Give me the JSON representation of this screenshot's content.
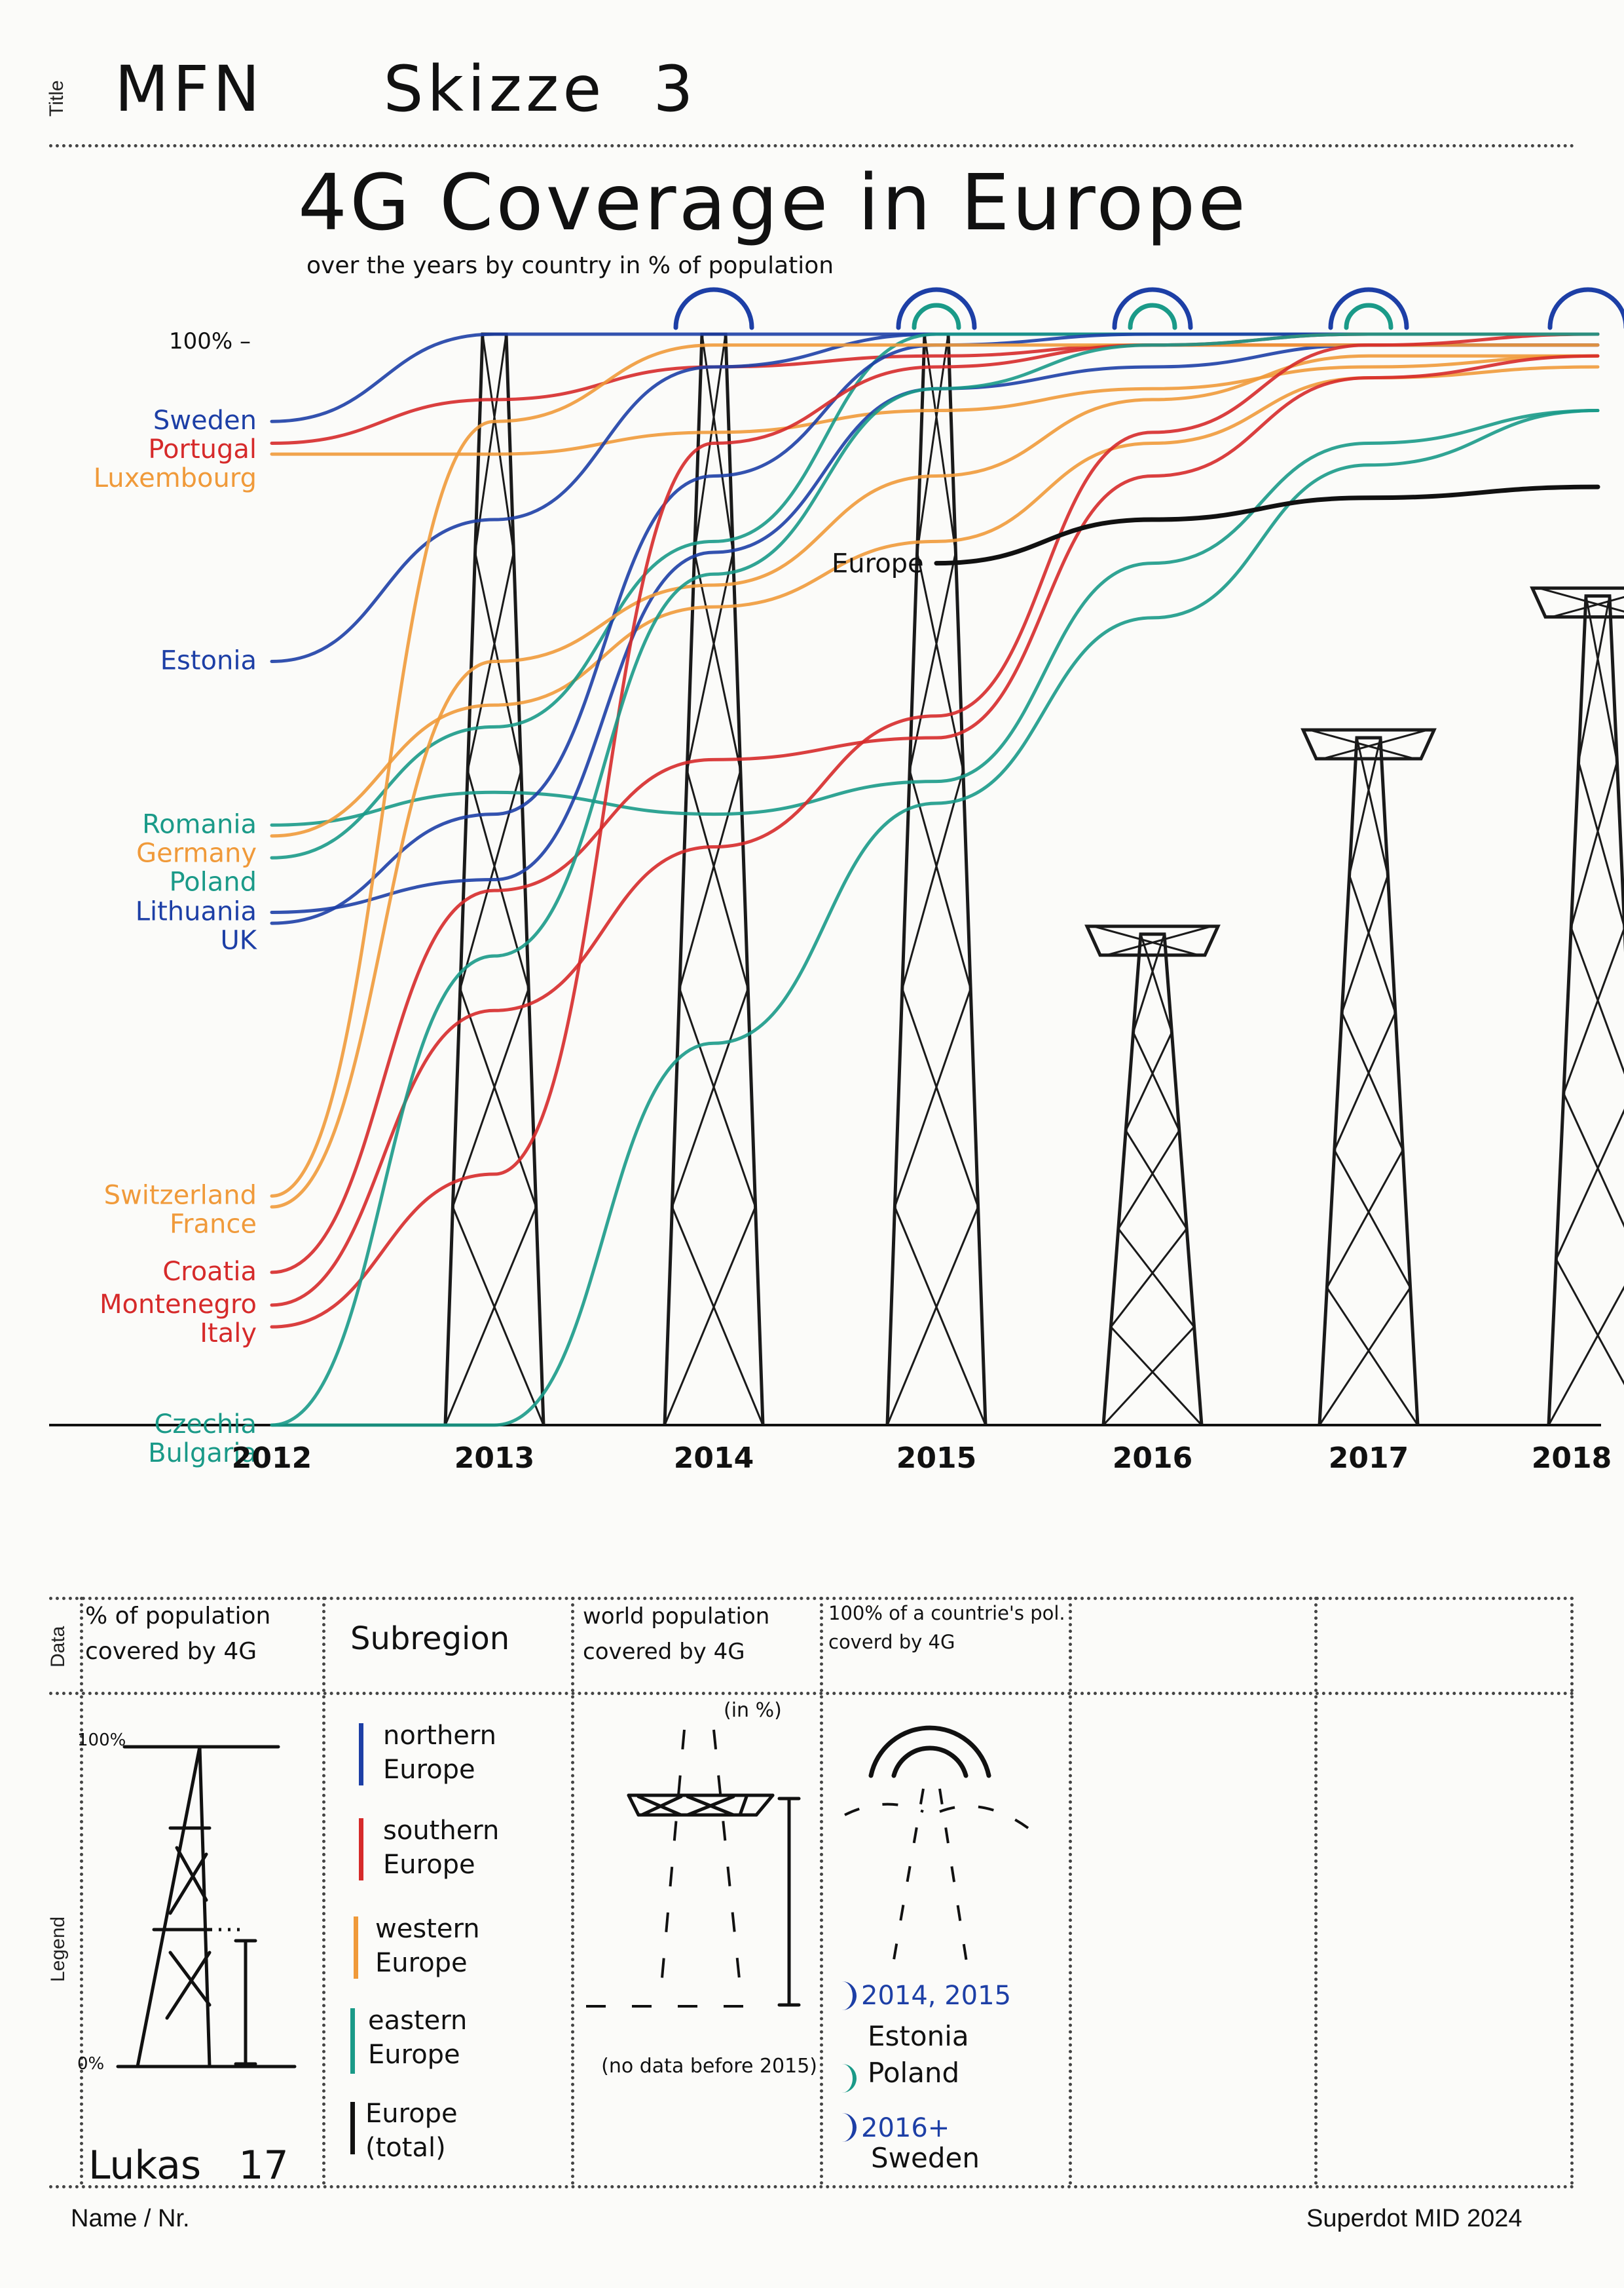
{
  "sheet": {
    "title_label": "Title",
    "title": "MFN     Skizze  3",
    "data_label": "Data",
    "legend_label": "Legend",
    "name_label": "Name / Nr.",
    "brand": "Superdot MID 2024",
    "author": "Lukas   17"
  },
  "chart_data": {
    "type": "line",
    "title": "4G Coverage in Europe",
    "subtitle": "over the years by country in % of population",
    "categories": [
      "2012",
      "2013",
      "2014",
      "2015",
      "2016",
      "2017",
      "2018"
    ],
    "y_top_label": "100% –",
    "ylim": [
      0,
      100
    ],
    "series": [
      {
        "name": "Sweden",
        "region": "northern",
        "values": [
          92,
          100,
          100,
          100,
          100,
          100,
          100
        ]
      },
      {
        "name": "Portugal",
        "region": "southern",
        "values": [
          90,
          94,
          97,
          98,
          99,
          99,
          99
        ]
      },
      {
        "name": "Luxembourg",
        "region": "western",
        "values": [
          89,
          89,
          91,
          93,
          95,
          97,
          98
        ]
      },
      {
        "name": "Estonia",
        "region": "northern",
        "values": [
          70,
          83,
          97,
          100,
          100,
          100,
          100
        ]
      },
      {
        "name": "Romania",
        "region": "eastern",
        "values": [
          55,
          58,
          56,
          59,
          79,
          90,
          93
        ]
      },
      {
        "name": "Germany",
        "region": "western",
        "values": [
          54,
          66,
          75,
          81,
          90,
          96,
          97
        ]
      },
      {
        "name": "Poland",
        "region": "eastern",
        "values": [
          52,
          64,
          81,
          100,
          100,
          100,
          100
        ]
      },
      {
        "name": "Lithuania",
        "region": "northern",
        "values": [
          47,
          50,
          80,
          95,
          97,
          99,
          99
        ]
      },
      {
        "name": "UK",
        "region": "northern",
        "values": [
          46,
          56,
          87,
          99,
          100,
          100,
          100
        ]
      },
      {
        "name": "Switzerland",
        "region": "western",
        "values": [
          21,
          92,
          99,
          99,
          99,
          99,
          99
        ]
      },
      {
        "name": "France",
        "region": "western",
        "values": [
          20,
          70,
          77,
          87,
          94,
          98,
          98
        ]
      },
      {
        "name": "Croatia",
        "region": "southern",
        "values": [
          14,
          49,
          61,
          63,
          87,
          96,
          98
        ]
      },
      {
        "name": "Montenegro",
        "region": "southern",
        "values": [
          11,
          38,
          53,
          65,
          91,
          99,
          100
        ]
      },
      {
        "name": "Italy",
        "region": "southern",
        "values": [
          9,
          23,
          90,
          97,
          99,
          100,
          100
        ]
      },
      {
        "name": "Czechia",
        "region": "eastern",
        "values": [
          0,
          43,
          78,
          95,
          99,
          100,
          100
        ]
      },
      {
        "name": "Bulgaria",
        "region": "eastern",
        "values": [
          0,
          0,
          35,
          57,
          74,
          88,
          93
        ]
      },
      {
        "name": "Europe",
        "region": "total",
        "values": [
          null,
          null,
          null,
          79,
          83,
          85,
          86
        ]
      }
    ],
    "towers_world_coverage_pct": [
      100,
      100,
      100,
      45,
      63,
      76
    ],
    "full_coverage_arcs": {
      "2014": 1,
      "2015": 2,
      "2016": 2,
      "2017": 2,
      "2018": 1
    },
    "annotations": {
      "europe_label": "Europe"
    },
    "colors": {
      "northern": "#1d3fa6",
      "southern": "#d62a2a",
      "western": "#f09a3a",
      "eastern": "#1a9a88",
      "total": "#111111"
    }
  },
  "legend": {
    "columns": [
      {
        "header": "% of population covered by 4G",
        "top": "100%",
        "bottom": "0%"
      },
      {
        "header": "Subregion",
        "items": [
          {
            "label": "northern Europe",
            "color": "#1d3fa6"
          },
          {
            "label": "southern Europe",
            "color": "#d62a2a"
          },
          {
            "label": "western Europe",
            "color": "#f09a3a"
          },
          {
            "label": "eastern Europe",
            "color": "#1a9a88"
          },
          {
            "label": "Europe (total)",
            "color": "#111111"
          }
        ]
      },
      {
        "header": "world population covered by 4G",
        "unit": "(in %)",
        "note": "(no data before 2015)"
      },
      {
        "header": "100% of a countrie's pol. coverd by 4G",
        "entries": [
          {
            "years": "2014, 2015",
            "countries": "Estonia Poland",
            "color": "#1d3fa6"
          },
          {
            "years": "2016+",
            "countries": "Sweden",
            "color": "#1d3fa6"
          }
        ]
      }
    ]
  }
}
